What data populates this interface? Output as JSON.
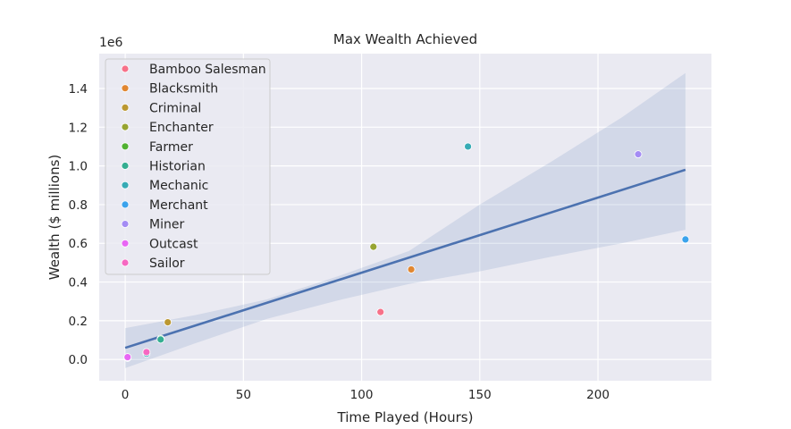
{
  "chart_data": {
    "type": "scatter",
    "title": "Max Wealth Achieved",
    "xlabel": "Time Played (Hours)",
    "ylabel": "Wealth ($ millions)",
    "offset_label": "1e6",
    "xlim": [
      -11,
      248
    ],
    "ylim": [
      -110000,
      1580000
    ],
    "xticks": [
      0,
      50,
      100,
      150,
      200
    ],
    "yticks": [
      0,
      200000,
      400000,
      600000,
      800000,
      1000000,
      1200000,
      1400000
    ],
    "ytick_labels": [
      "0.0",
      "0.2",
      "0.4",
      "0.6",
      "0.8",
      "1.0",
      "1.2",
      "1.4"
    ],
    "grid": true,
    "legend_position": "top-left",
    "series": [
      {
        "name": "Bamboo Salesman",
        "color": "#f77189",
        "points": [
          [
            108,
            245000
          ]
        ]
      },
      {
        "name": "Blacksmith",
        "color": "#e18731",
        "points": [
          [
            121,
            465000
          ]
        ]
      },
      {
        "name": "Criminal",
        "color": "#bb9832",
        "points": [
          [
            18,
            192000
          ]
        ]
      },
      {
        "name": "Enchanter",
        "color": "#97a431",
        "points": [
          [
            105,
            582000
          ]
        ]
      },
      {
        "name": "Farmer",
        "color": "#50b131",
        "points": [
          [
            15,
            107000
          ]
        ]
      },
      {
        "name": "Historian",
        "color": "#34ae91",
        "points": [
          [
            15,
            103000
          ]
        ]
      },
      {
        "name": "Mechanic",
        "color": "#37abb5",
        "points": [
          [
            145,
            1100000
          ],
          [
            9,
            30000
          ]
        ]
      },
      {
        "name": "Merchant",
        "color": "#3ba3ec",
        "points": [
          [
            237,
            620000
          ]
        ]
      },
      {
        "name": "Miner",
        "color": "#a48cf4",
        "points": [
          [
            217,
            1060000
          ],
          [
            1,
            8000
          ]
        ]
      },
      {
        "name": "Outcast",
        "color": "#e866f4",
        "points": [
          [
            1,
            12000
          ]
        ]
      },
      {
        "name": "Sailor",
        "color": "#f668c2",
        "points": [
          [
            9,
            38000
          ]
        ]
      }
    ],
    "regression": {
      "color": "#4c72b0",
      "line": [
        [
          0,
          60000
        ],
        [
          237,
          980000
        ]
      ],
      "ci_band": [
        {
          "x": 0,
          "low": -45000,
          "high": 162000
        },
        {
          "x": 30,
          "low": 85000,
          "high": 230000
        },
        {
          "x": 60,
          "low": 210000,
          "high": 310000
        },
        {
          "x": 90,
          "low": 305000,
          "high": 430000
        },
        {
          "x": 120,
          "low": 390000,
          "high": 560000
        },
        {
          "x": 150,
          "low": 455000,
          "high": 800000
        },
        {
          "x": 180,
          "low": 530000,
          "high": 1020000
        },
        {
          "x": 210,
          "low": 600000,
          "high": 1250000
        },
        {
          "x": 237,
          "low": 670000,
          "high": 1480000
        }
      ]
    }
  }
}
